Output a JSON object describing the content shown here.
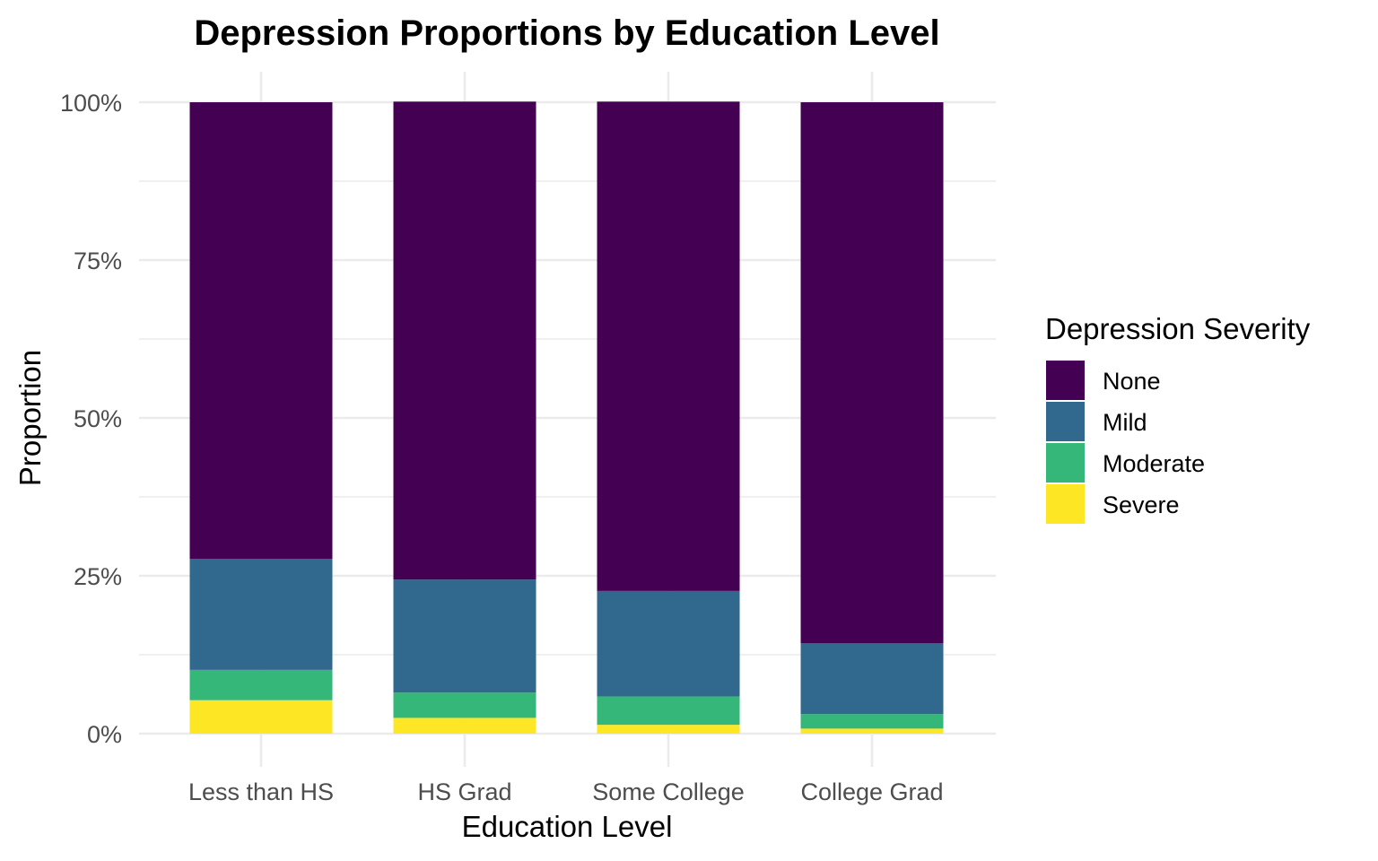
{
  "chart_data": {
    "type": "bar",
    "stacked": true,
    "title": "Depression Proportions by Education Level",
    "xlabel": "Education Level",
    "ylabel": "Proportion",
    "categories": [
      "Less than HS",
      "HS Grad",
      "Some College",
      "College Grad"
    ],
    "y_ticks": [
      0,
      0.25,
      0.5,
      0.75,
      1.0
    ],
    "y_tick_labels": [
      "0%",
      "25%",
      "50%",
      "75%",
      "100%"
    ],
    "ylim": [
      0,
      1
    ],
    "grid": true,
    "legend": {
      "title": "Depression Severity",
      "position": "right"
    },
    "series": [
      {
        "name": "None",
        "color": "#440154",
        "values": [
          0.723,
          0.757,
          0.775,
          0.857
        ]
      },
      {
        "name": "Mild",
        "color": "#31688E",
        "values": [
          0.176,
          0.179,
          0.167,
          0.112
        ]
      },
      {
        "name": "Moderate",
        "color": "#35B779",
        "values": [
          0.048,
          0.04,
          0.045,
          0.023
        ]
      },
      {
        "name": "Severe",
        "color": "#FDE725",
        "values": [
          0.053,
          0.025,
          0.014,
          0.008
        ]
      }
    ]
  }
}
